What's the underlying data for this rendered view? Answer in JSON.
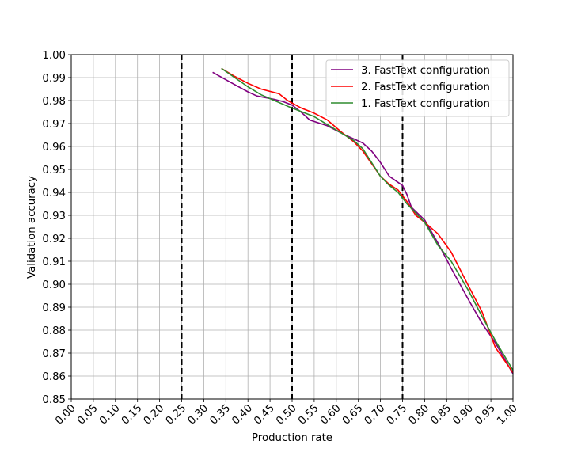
{
  "chart_data": {
    "type": "line",
    "title": "",
    "xlabel": "Production rate",
    "ylabel": "Validation accuracy",
    "xlim": [
      0.0,
      1.0
    ],
    "ylim": [
      0.85,
      1.0
    ],
    "xticks": [
      "0.00",
      "0.05",
      "0.10",
      "0.15",
      "0.20",
      "0.25",
      "0.30",
      "0.35",
      "0.40",
      "0.45",
      "0.50",
      "0.55",
      "0.60",
      "0.65",
      "0.70",
      "0.75",
      "0.80",
      "0.85",
      "0.90",
      "0.95",
      "1.00"
    ],
    "yticks": [
      "0.85",
      "0.86",
      "0.87",
      "0.88",
      "0.89",
      "0.90",
      "0.91",
      "0.92",
      "0.93",
      "0.94",
      "0.95",
      "0.96",
      "0.97",
      "0.98",
      "0.99",
      "1.00"
    ],
    "grid": true,
    "legend_position": "top-right",
    "vlines": [
      0.25,
      0.5,
      0.75
    ],
    "vline_color": "#000000",
    "series": [
      {
        "name": "3. FastText configuration",
        "color": "#800080",
        "x": [
          0.32,
          0.36,
          0.4,
          0.42,
          0.46,
          0.48,
          0.5,
          0.52,
          0.54,
          0.58,
          0.62,
          0.66,
          0.68,
          0.7,
          0.72,
          0.75,
          0.76,
          0.77,
          0.8,
          0.83,
          0.86,
          0.9,
          0.93,
          0.96,
          1.0
        ],
        "y": [
          0.9923,
          0.988,
          0.9838,
          0.982,
          0.9805,
          0.9795,
          0.978,
          0.975,
          0.9715,
          0.969,
          0.965,
          0.9615,
          0.958,
          0.953,
          0.947,
          0.943,
          0.939,
          0.9335,
          0.928,
          0.918,
          0.907,
          0.893,
          0.883,
          0.8745,
          0.861
        ]
      },
      {
        "name": "2. FastText configuration",
        "color": "#ff0000",
        "x": [
          0.34,
          0.37,
          0.4,
          0.43,
          0.47,
          0.49,
          0.52,
          0.55,
          0.58,
          0.61,
          0.64,
          0.66,
          0.68,
          0.7,
          0.72,
          0.74,
          0.76,
          0.78,
          0.8,
          0.83,
          0.86,
          0.9,
          0.93,
          0.96,
          1.0
        ],
        "y": [
          0.994,
          0.9905,
          0.9875,
          0.985,
          0.983,
          0.98,
          0.9768,
          0.9745,
          0.9715,
          0.9665,
          0.962,
          0.958,
          0.9525,
          0.947,
          0.9435,
          0.941,
          0.936,
          0.93,
          0.927,
          0.922,
          0.914,
          0.899,
          0.888,
          0.8725,
          0.8615
        ]
      },
      {
        "name": "1. FastText configuration",
        "color": "#2e8b2e",
        "x": [
          0.34,
          0.37,
          0.4,
          0.43,
          0.46,
          0.49,
          0.51,
          0.55,
          0.58,
          0.61,
          0.64,
          0.66,
          0.68,
          0.7,
          0.72,
          0.74,
          0.76,
          0.78,
          0.8,
          0.83,
          0.86,
          0.9,
          0.93,
          0.96,
          1.0
        ],
        "y": [
          0.994,
          0.99,
          0.986,
          0.9825,
          0.98,
          0.9775,
          0.976,
          0.973,
          0.9695,
          0.966,
          0.9625,
          0.959,
          0.953,
          0.947,
          0.943,
          0.94,
          0.935,
          0.931,
          0.927,
          0.917,
          0.91,
          0.897,
          0.886,
          0.8755,
          0.8625
        ]
      }
    ]
  }
}
